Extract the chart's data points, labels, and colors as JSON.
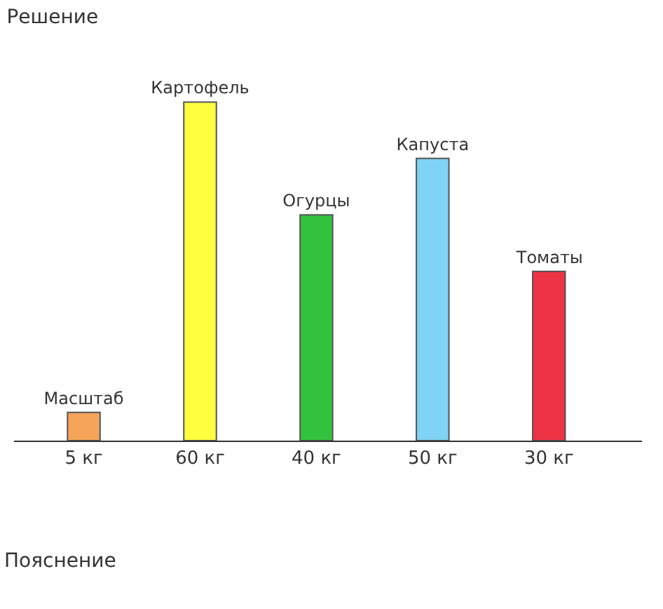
{
  "chart_data": {
    "type": "bar",
    "title": "Решение",
    "categories": [
      "Масштаб",
      "Картофель",
      "Огурцы",
      "Капуста",
      "Томаты"
    ],
    "values": [
      5,
      60,
      40,
      50,
      30
    ],
    "colors": [
      "#f5a45a",
      "#ffff40",
      "#33c23d",
      "#7fd3f5",
      "#ee3345"
    ],
    "value_labels": [
      "5 кг",
      "60 кг",
      "40 кг",
      "50 кг",
      "30 кг"
    ],
    "annotations": [
      "Пояснение"
    ],
    "grid": false,
    "legend": false
  }
}
